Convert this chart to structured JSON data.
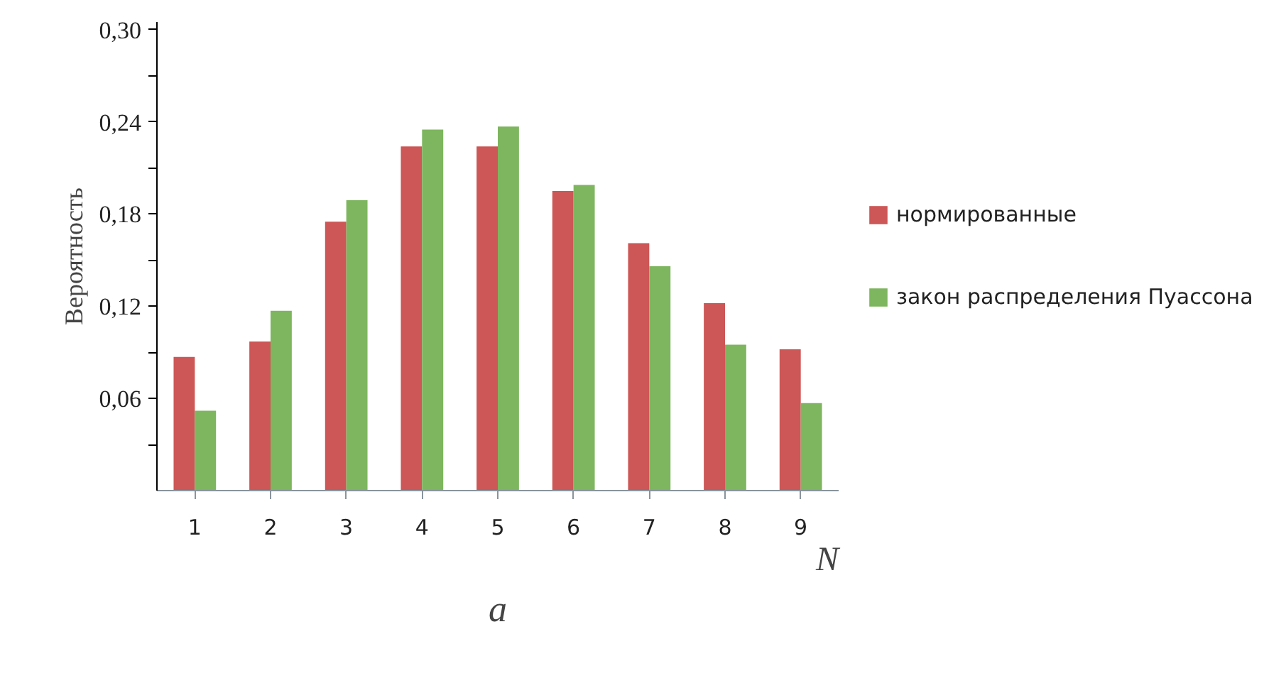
{
  "chart_data": {
    "type": "bar",
    "ylabel": "Вероятность",
    "xlabel": "N",
    "annotations": [
      "a"
    ],
    "categories": [
      "1",
      "2",
      "3",
      "4",
      "5",
      "6",
      "7",
      "8",
      "9"
    ],
    "series": [
      {
        "name": "нормированные",
        "color": "#cd5656",
        "values": [
          0.087,
          0.097,
          0.175,
          0.224,
          0.224,
          0.195,
          0.161,
          0.122,
          0.092
        ]
      },
      {
        "name": "закон распределения Пуассона",
        "color": "#7db65e",
        "values": [
          0.052,
          0.117,
          0.189,
          0.235,
          0.237,
          0.199,
          0.146,
          0.095,
          0.057
        ]
      }
    ],
    "ylim": [
      0,
      0.305
    ],
    "yticks": [
      {
        "value": 0.03,
        "label": null
      },
      {
        "value": 0.06,
        "label": "0,06"
      },
      {
        "value": 0.09,
        "label": null
      },
      {
        "value": 0.12,
        "label": "0,12"
      },
      {
        "value": 0.15,
        "label": null
      },
      {
        "value": 0.18,
        "label": "0,18"
      },
      {
        "value": 0.21,
        "label": null
      },
      {
        "value": 0.24,
        "label": "0,24"
      },
      {
        "value": 0.27,
        "label": null
      },
      {
        "value": 0.3,
        "label": "0,30"
      }
    ],
    "grid": false,
    "legend": "right"
  }
}
